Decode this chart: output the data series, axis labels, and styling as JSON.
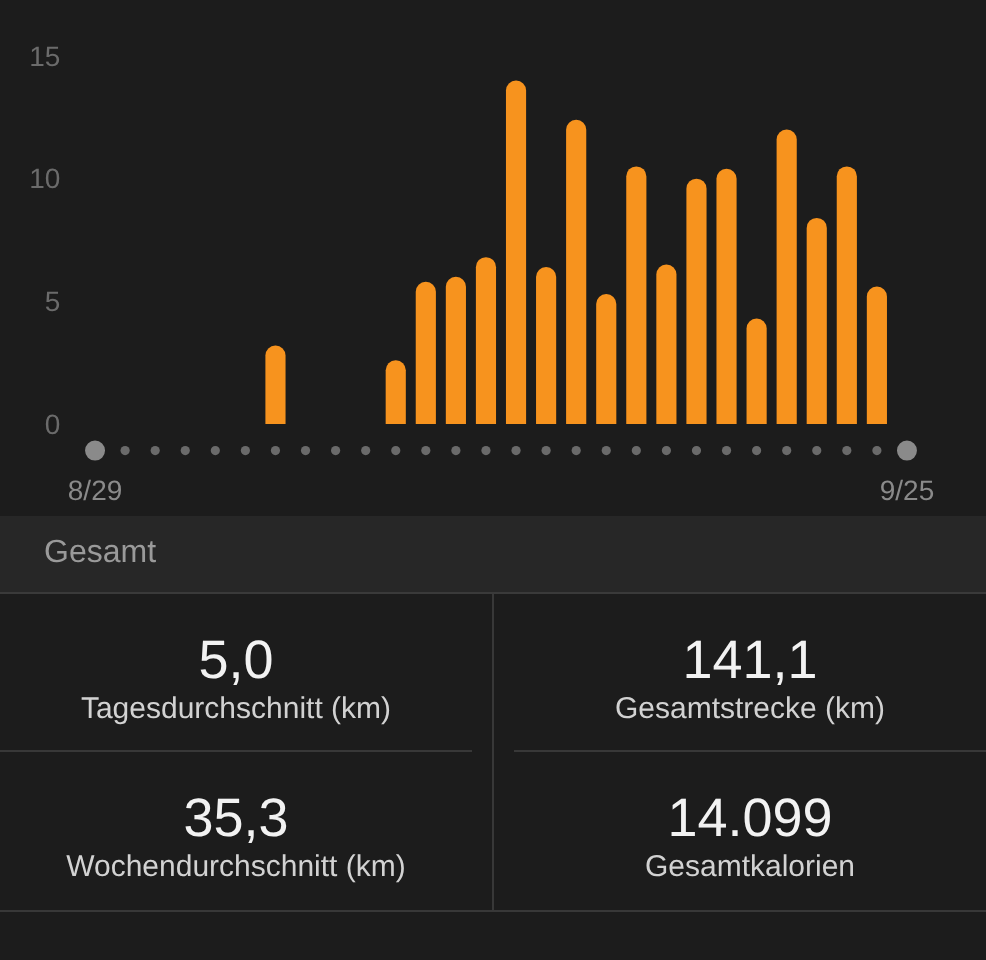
{
  "chart_data": [
    {
      "type": "bar",
      "categories": [
        "8/29",
        null,
        null,
        null,
        null,
        null,
        null,
        null,
        null,
        null,
        null,
        null,
        null,
        null,
        null,
        null,
        null,
        null,
        null,
        null,
        null,
        null,
        null,
        null,
        null,
        null,
        null,
        "9/25"
      ],
      "values": [
        null,
        null,
        null,
        null,
        null,
        null,
        3.2,
        null,
        null,
        null,
        2.6,
        5.8,
        6.0,
        6.8,
        14.0,
        6.4,
        12.4,
        5.3,
        10.5,
        6.5,
        10.0,
        10.4,
        4.3,
        12.0,
        8.4,
        10.5,
        5.6,
        null
      ],
      "color": "#f7931e",
      "ylim": [
        0,
        15
      ],
      "yticks": [
        0,
        5,
        10,
        15
      ],
      "grid": false,
      "legend": false
    },
    {
      "type": "other",
      "title": "Gesamt",
      "annotations": [
        "5,0",
        "Tagesdurchschnitt (km)",
        "141,1",
        "Gesamtstrecke (km)",
        "35,3",
        "Wochendurchschnitt (km)",
        "14.099",
        "Gesamtkalorien"
      ]
    }
  ]
}
